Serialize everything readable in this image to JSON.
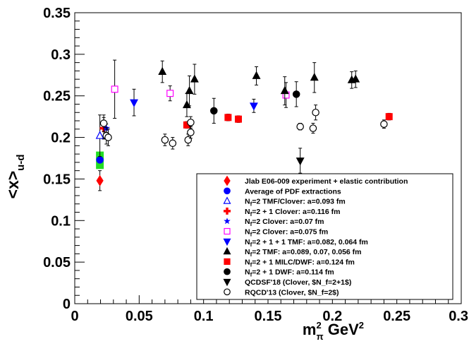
{
  "chart_data": {
    "type": "scatter",
    "title": "",
    "xlabel": "m²π GeV²",
    "xlabel_parts": {
      "main": "m",
      "sup": "2",
      "sub": "π",
      "unit": " GeV",
      "unit_sup": "2"
    },
    "ylabel": "<x>u-d",
    "ylabel_parts": {
      "main": "<x>",
      "sub": "u-d"
    },
    "xlim": [
      0,
      0.3
    ],
    "ylim": [
      0,
      0.35
    ],
    "xticks": [
      "0",
      "0.05",
      "0.1",
      "0.15",
      "0.2",
      "0.25",
      "0.3"
    ],
    "yticks": [
      "0",
      "0.05",
      "0.1",
      "0.15",
      "0.2",
      "0.25",
      "0.3",
      "0.35"
    ],
    "grid": false,
    "legend_position": "bottom-right",
    "series": [
      {
        "name": "Jlab E06-009 experiment + elastic contribution",
        "marker": "diamond",
        "color": "#ff0000",
        "filled": true,
        "points": [
          {
            "x": 0.0195,
            "y": 0.148,
            "err": 0.012
          }
        ]
      },
      {
        "name": "Average of PDF extractions",
        "marker": "circle",
        "color": "#0000ff",
        "filled": true,
        "points": [
          {
            "x": 0.0195,
            "y": 0.173,
            "err": 0.0
          }
        ],
        "band": {
          "x0": 0.0165,
          "x1": 0.0225,
          "y0": 0.162,
          "y1": 0.183,
          "color": "#22dd22"
        }
      },
      {
        "name": "Nf=2 TMF/Clover: a=0.093 fm",
        "marker": "triangle-up",
        "color": "#0000ff",
        "filled": false,
        "points": [
          {
            "x": 0.0195,
            "y": 0.202,
            "err": 0.025
          }
        ]
      },
      {
        "name": "Nf=2 + 1 Clover: a=0.116 fm",
        "marker": "cross",
        "color": "#ff0000",
        "filled": true,
        "points": [
          {
            "x": 0.0225,
            "y": 0.211,
            "err": 0.013
          }
        ]
      },
      {
        "name": "Nf=2 Clover: a=0.07 fm",
        "marker": "star",
        "color": "#0000ff",
        "filled": true,
        "points": [
          {
            "x": 0.0245,
            "y": 0.211,
            "err": 0.005
          }
        ]
      },
      {
        "name": "Nf=2 Clover: a=0.075 fm",
        "marker": "square",
        "color": "#ff00ff",
        "filled": false,
        "points": [
          {
            "x": 0.031,
            "y": 0.258,
            "err": 0.035
          },
          {
            "x": 0.074,
            "y": 0.253,
            "err": 0.009
          },
          {
            "x": 0.164,
            "y": 0.251,
            "err": 0.015
          }
        ]
      },
      {
        "name": "Nf=2 + 1 + 1 TMF: a=0.082, 0.064 fm",
        "marker": "triangle-down",
        "color": "#0000ff",
        "filled": true,
        "points": [
          {
            "x": 0.046,
            "y": 0.242,
            "err": 0.016
          },
          {
            "x": 0.139,
            "y": 0.238,
            "err": 0.008
          }
        ]
      },
      {
        "name": "Nf=2 TMF: a=0.089, 0.07, 0.056 fm",
        "marker": "triangle-up",
        "color": "#000000",
        "filled": true,
        "points": [
          {
            "x": 0.068,
            "y": 0.279,
            "err": 0.013
          },
          {
            "x": 0.087,
            "y": 0.239,
            "err": 0.014
          },
          {
            "x": 0.089,
            "y": 0.256,
            "err": 0.018
          },
          {
            "x": 0.093,
            "y": 0.27,
            "err": 0.018
          },
          {
            "x": 0.141,
            "y": 0.274,
            "err": 0.011
          },
          {
            "x": 0.163,
            "y": 0.256,
            "err": 0.017
          },
          {
            "x": 0.186,
            "y": 0.272,
            "err": 0.018
          },
          {
            "x": 0.215,
            "y": 0.269,
            "err": 0.01
          },
          {
            "x": 0.218,
            "y": 0.27,
            "err": 0.01
          }
        ]
      },
      {
        "name": "Nf=2 + 1 MILC/DWF: a=0.124 fm",
        "marker": "square",
        "color": "#ff0000",
        "filled": true,
        "points": [
          {
            "x": 0.087,
            "y": 0.215,
            "err": 0.004
          },
          {
            "x": 0.119,
            "y": 0.224,
            "err": 0.004
          },
          {
            "x": 0.127,
            "y": 0.222,
            "err": 0.004
          },
          {
            "x": 0.244,
            "y": 0.225,
            "err": 0.004
          }
        ]
      },
      {
        "name": "Nf=2 + 1 DWF: a=0.114 fm",
        "marker": "circle",
        "color": "#000000",
        "filled": true,
        "points": [
          {
            "x": 0.108,
            "y": 0.232,
            "err": 0.015
          },
          {
            "x": 0.172,
            "y": 0.252,
            "err": 0.015
          }
        ]
      },
      {
        "name": "QCDSF'18 (Clover, $N_f=2+1$)",
        "marker": "triangle-down",
        "color": "#000000",
        "filled": true,
        "points": [
          {
            "x": 0.175,
            "y": 0.172,
            "err": 0.015
          }
        ]
      },
      {
        "name": "RQCD'13 (Clover, $N_f=2$)",
        "marker": "circle",
        "color": "#000000",
        "filled": false,
        "points": [
          {
            "x": 0.0225,
            "y": 0.217,
            "err": 0.01
          },
          {
            "x": 0.0245,
            "y": 0.202,
            "err": 0.01
          },
          {
            "x": 0.026,
            "y": 0.2,
            "err": 0.01
          },
          {
            "x": 0.07,
            "y": 0.197,
            "err": 0.007
          },
          {
            "x": 0.076,
            "y": 0.193,
            "err": 0.007
          },
          {
            "x": 0.088,
            "y": 0.197,
            "err": 0.007
          },
          {
            "x": 0.09,
            "y": 0.206,
            "err": 0.007
          },
          {
            "x": 0.09,
            "y": 0.218,
            "err": 0.007
          },
          {
            "x": 0.175,
            "y": 0.213,
            "err": 0.004
          },
          {
            "x": 0.185,
            "y": 0.211,
            "err": 0.006
          },
          {
            "x": 0.187,
            "y": 0.23,
            "err": 0.009
          },
          {
            "x": 0.24,
            "y": 0.216,
            "err": 0.005
          }
        ]
      }
    ],
    "legend": [
      {
        "main": "Jlab E06-009 experiment + elastic contribution"
      },
      {
        "main": "Average of PDF extractions"
      },
      {
        "pre": "N",
        "sub": "f",
        "main": "=2 TMF/Clover: a=0.093 fm"
      },
      {
        "pre": "N",
        "sub": "f",
        "main": "=2 + 1 Clover: a=0.116 fm"
      },
      {
        "pre": "N",
        "sub": "f",
        "main": "=2 Clover: a=0.07 fm"
      },
      {
        "pre": "N",
        "sub": "f",
        "main": "=2 Clover: a=0.075 fm"
      },
      {
        "pre": "N",
        "sub": "f",
        "main": "=2 + 1 + 1 TMF: a=0.082, 0.064 fm"
      },
      {
        "pre": "N",
        "sub": "f",
        "main": "=2 TMF: a=0.089, 0.07, 0.056 fm"
      },
      {
        "pre": "N",
        "sub": "f",
        "main": "=2 + 1 MILC/DWF: a=0.124 fm"
      },
      {
        "pre": "N",
        "sub": "f",
        "main": "=2 + 1 DWF: a=0.114 fm"
      },
      {
        "main": "QCDSF'18 (Clover, $N_f=2+1$)"
      },
      {
        "main": "RQCD'13 (Clover, $N_f=2$)"
      }
    ]
  }
}
